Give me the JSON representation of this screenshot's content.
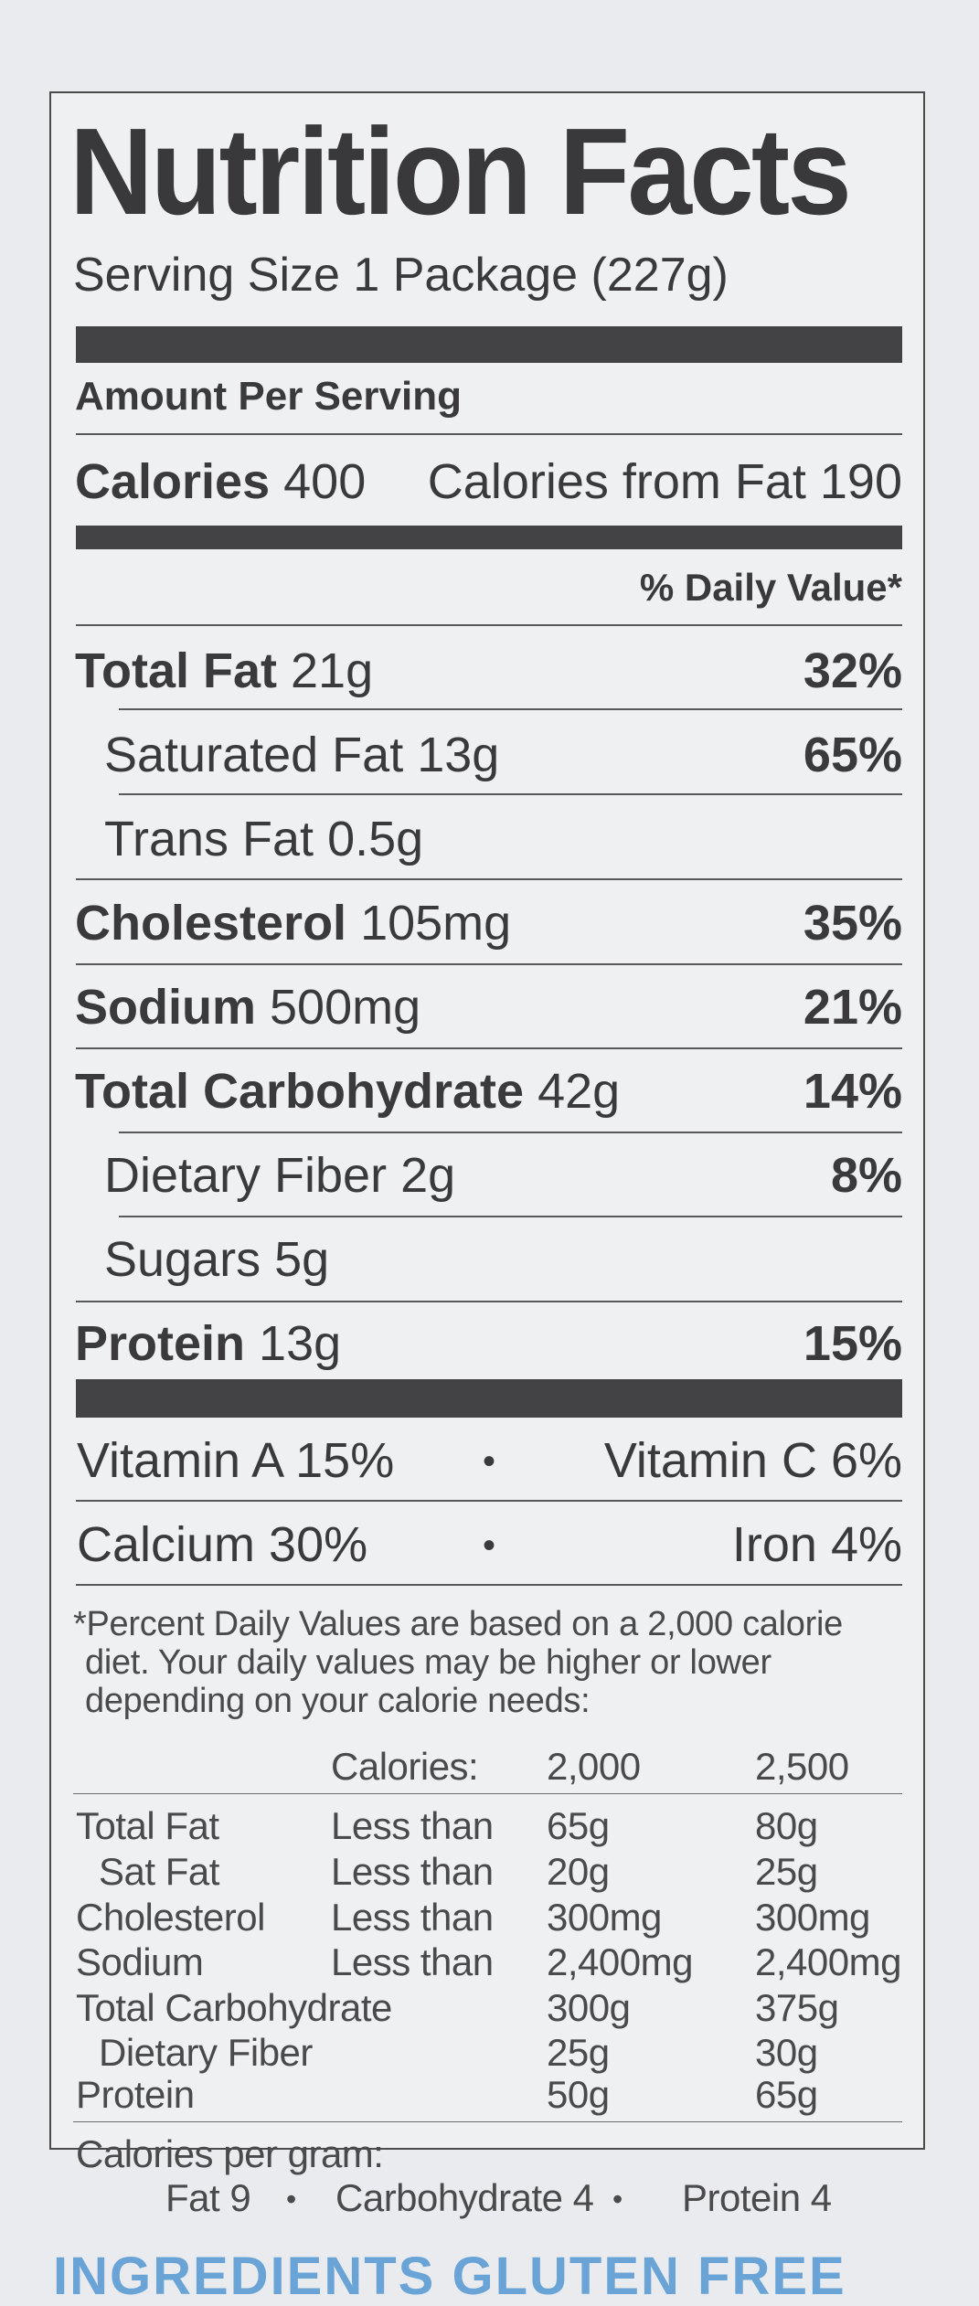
{
  "title": "Nutrition Facts",
  "serving_size": "Serving Size 1 Package (227g)",
  "amount_per_serving": "Amount Per Serving",
  "calories": {
    "label": "Calories",
    "value": "400",
    "from_fat": "Calories from Fat 190"
  },
  "daily_value_header": "% Daily Value*",
  "nutrients": [
    {
      "name": "Total Fat",
      "amount": "21g",
      "dv": "32%"
    },
    {
      "name": "Saturated Fat",
      "amount": "13g",
      "dv": "65%"
    },
    {
      "name": "Trans Fat",
      "amount": "0.5g",
      "dv": ""
    },
    {
      "name": "Cholesterol",
      "amount": "105mg",
      "dv": "35%"
    },
    {
      "name": "Sodium",
      "amount": "500mg",
      "dv": "21%"
    },
    {
      "name": "Total Carbohydrate",
      "amount": "42g",
      "dv": "14%"
    },
    {
      "name": "Dietary Fiber",
      "amount": "2g",
      "dv": "8%"
    },
    {
      "name": "Sugars",
      "amount": "5g",
      "dv": ""
    },
    {
      "name": "Protein",
      "amount": "13g",
      "dv": "15%"
    }
  ],
  "vitamins": [
    {
      "left": "Vitamin A 15%",
      "separator": "•",
      "right": "Vitamin C 6%"
    },
    {
      "left": "Calcium 30%",
      "separator": "•",
      "right": "Iron 4%"
    }
  ],
  "footnote": [
    "*Percent Daily Values are based on a 2,000 calorie",
    "diet. Your daily values may be higher or lower",
    "depending on your calorie needs:"
  ],
  "reference_table": {
    "header": [
      "Calories:",
      "2,000",
      "2,500"
    ],
    "rows": [
      [
        "Total Fat",
        "Less than",
        "65g",
        "80g"
      ],
      [
        "Sat Fat",
        "Less than",
        "20g",
        "25g"
      ],
      [
        "Cholesterol",
        "Less than",
        "300mg",
        "300mg"
      ],
      [
        "Sodium",
        "Less than",
        "2,400mg",
        "2,400mg"
      ],
      [
        "Total Carbohydrate",
        "",
        "300g",
        "375g"
      ],
      [
        "Dietary Fiber",
        "",
        "25g",
        "30g"
      ],
      [
        "Protein",
        "",
        "50g",
        "65g"
      ]
    ]
  },
  "calories_per_gram": {
    "label": "Calories per gram:",
    "fat": "Fat 9",
    "sep": "•",
    "carbohydrate": "Carbohydrate 4",
    "protein": "Protein 4"
  },
  "ingredients_partial": "INGREDIENTS   GLUTEN FREE",
  "colors": {
    "ink": "#3a3a3c",
    "panel": "#eef0f2",
    "background": "#e9ebee",
    "bar": "#434345",
    "ingredients_accent": "#6aa4d6"
  }
}
